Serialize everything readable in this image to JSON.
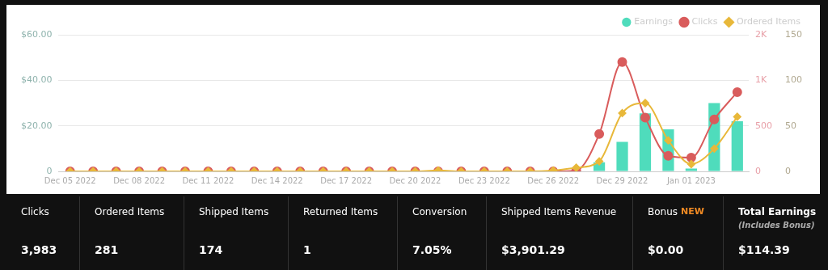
{
  "chart_data": [
    {
      "type": "bar",
      "categories": [
        "Dec 05 2022",
        null,
        null,
        "Dec 08 2022",
        null,
        null,
        "Dec 11 2022",
        null,
        null,
        "Dec 14 2022",
        null,
        null,
        "Dec 17 2022",
        null,
        null,
        "Dec 20 2022",
        null,
        null,
        "Dec 23 2022",
        null,
        null,
        "Dec 26 2022",
        null,
        null,
        "Dec 29 2022",
        null,
        null,
        "Jan 01 2023",
        null,
        null
      ],
      "series": [
        {
          "name": "Earnings",
          "type": "bar",
          "color": "#4fdcbc",
          "marker": "circle",
          "values": [
            0,
            0,
            0,
            0,
            0,
            0,
            0,
            0,
            0,
            0,
            0,
            0,
            0,
            0,
            0,
            0,
            0,
            0,
            0,
            0,
            0,
            0,
            0,
            4,
            13,
            25.5,
            18.5,
            1.2,
            30,
            22
          ]
        },
        {
          "name": "Clicks",
          "type": "line",
          "axis": "y2",
          "color": "#d95c5c",
          "marker": "circle",
          "values": [
            0,
            0,
            0,
            0,
            0,
            0,
            0,
            0,
            0,
            0,
            0,
            0,
            0,
            0,
            0,
            0,
            0,
            0,
            0,
            0,
            0,
            0,
            10,
            410,
            1200,
            590,
            170,
            150,
            570,
            870
          ]
        },
        {
          "name": "Ordered Items",
          "type": "line",
          "axis": "y3",
          "color": "#e8b83a",
          "marker": "diamond",
          "values": [
            0,
            0,
            0,
            0,
            0,
            0,
            0,
            0,
            0,
            0,
            0,
            0,
            0,
            0,
            0,
            0,
            1,
            0,
            0,
            0,
            0,
            1,
            4,
            11,
            64,
            75,
            34,
            8,
            25,
            60
          ]
        }
      ],
      "ylim": [
        0,
        60
      ],
      "yticks": [
        0,
        {
          "value": 20,
          "label": "$20.00"
        },
        {
          "value": 40,
          "label": "$40.00"
        },
        {
          "value": 60,
          "label": "$60.00"
        }
      ],
      "y2lim": [
        0,
        1500
      ],
      "y2ticks": [
        0,
        500,
        {
          "value": 1000,
          "label": "1K"
        },
        {
          "value": 1500,
          "label": "2K"
        }
      ],
      "y3lim": [
        0,
        150
      ],
      "y3ticks": [
        0,
        50,
        100,
        150
      ],
      "grid": "y",
      "legend": "top right"
    },
    {
      "type": "other",
      "categories": [
        "Clicks",
        "Ordered Items",
        "Shipped Items",
        "Returned Items",
        "Conversion",
        "Shipped Items Revenue",
        "Bonus",
        "Total Earnings"
      ],
      "value_labels": [
        "3,983",
        "281",
        "174",
        "1",
        "7.05%",
        "$3,901.29",
        "$0.00",
        "$114.39"
      ],
      "annotations": [
        "NEW",
        "(Includes Bonus)"
      ]
    }
  ]
}
